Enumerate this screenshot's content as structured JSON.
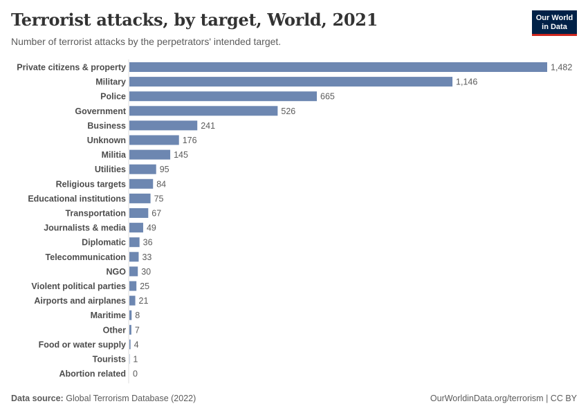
{
  "header": {
    "title": "Terrorist attacks, by target, World, 2021",
    "subtitle": "Number of terrorist attacks by the perpetrators' intended target.",
    "logo_line1": "Our World",
    "logo_line2": "in Data"
  },
  "footer": {
    "source_label": "Data source:",
    "source_text": "Global Terrorism Database (2022)",
    "credit": "OurWorldinData.org/terrorism | CC BY"
  },
  "colors": {
    "bar": "#6d87b1",
    "axis": "#dddddd"
  },
  "chart_data": {
    "type": "bar",
    "orientation": "horizontal",
    "title": "Terrorist attacks, by target, World, 2021",
    "subtitle": "Number of terrorist attacks by the perpetrators' intended target.",
    "xlabel": "",
    "ylabel": "",
    "xlim": [
      0,
      1482
    ],
    "grid": false,
    "categories": [
      "Private citizens & property",
      "Military",
      "Police",
      "Government",
      "Business",
      "Unknown",
      "Militia",
      "Utilities",
      "Religious targets",
      "Educational institutions",
      "Transportation",
      "Journalists & media",
      "Diplomatic",
      "Telecommunication",
      "NGO",
      "Violent political parties",
      "Airports and airplanes",
      "Maritime",
      "Other",
      "Food or water supply",
      "Tourists",
      "Abortion related"
    ],
    "values": [
      1482,
      1146,
      665,
      526,
      241,
      176,
      145,
      95,
      84,
      75,
      67,
      49,
      36,
      33,
      30,
      25,
      21,
      8,
      7,
      4,
      1,
      0
    ],
    "value_labels": [
      "1,482",
      "1,146",
      "665",
      "526",
      "241",
      "176",
      "145",
      "95",
      "84",
      "75",
      "67",
      "49",
      "36",
      "33",
      "30",
      "25",
      "21",
      "8",
      "7",
      "4",
      "1",
      "0"
    ]
  }
}
